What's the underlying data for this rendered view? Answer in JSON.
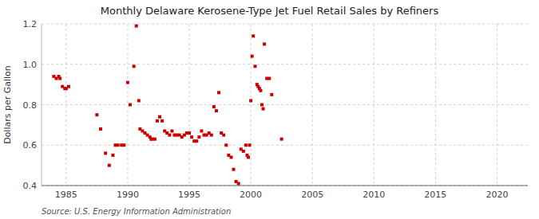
{
  "chart_data": {
    "type": "scatter",
    "title": "Monthly Delaware Kerosene-Type Jet Fuel Retail Sales by Refiners",
    "ylabel": "Dollars per Gallon",
    "source": "Source: U.S. Energy Information Administration",
    "color": "#cc0000",
    "marker": "square",
    "grid": true,
    "xlim": [
      1983.0,
      2022.5
    ],
    "ylim": [
      0.4,
      1.2
    ],
    "xticks": [
      1985,
      1990,
      1995,
      2000,
      2005,
      2010,
      2015,
      2020
    ],
    "yticks": [
      0.4,
      0.6,
      0.8,
      {
        "value": 1.0,
        "label": "1.0"
      },
      1.2
    ],
    "x": [
      1984.0,
      1984.2,
      1984.4,
      1984.5,
      1984.7,
      1984.9,
      1985.0,
      1985.2,
      1987.5,
      1987.8,
      1988.2,
      1988.5,
      1988.8,
      1989.0,
      1989.2,
      1989.5,
      1989.7,
      1990.0,
      1990.2,
      1990.5,
      1990.7,
      1990.9,
      1991.0,
      1991.2,
      1991.4,
      1991.6,
      1991.8,
      1991.9,
      1992.0,
      1992.2,
      1992.4,
      1992.6,
      1992.8,
      1993.0,
      1993.2,
      1993.4,
      1993.6,
      1993.8,
      1994.0,
      1994.2,
      1994.4,
      1994.6,
      1994.8,
      1995.0,
      1995.2,
      1995.4,
      1995.6,
      1995.8,
      1996.0,
      1996.2,
      1996.4,
      1996.6,
      1996.8,
      1997.0,
      1997.2,
      1997.4,
      1997.6,
      1997.8,
      1998.0,
      1998.2,
      1998.4,
      1998.6,
      1998.8,
      1999.0,
      1999.2,
      1999.4,
      1999.6,
      1999.7,
      1999.8,
      1999.9,
      2000.0,
      2000.1,
      2000.2,
      2000.35,
      2000.5,
      2000.6,
      2000.7,
      2000.8,
      2000.9,
      2001.0,
      2001.1,
      2001.3,
      2001.5,
      2001.7,
      2002.5
    ],
    "values": [
      0.94,
      0.93,
      0.94,
      0.93,
      0.89,
      0.88,
      0.88,
      0.89,
      0.75,
      0.68,
      0.56,
      0.5,
      0.55,
      0.6,
      0.6,
      0.6,
      0.6,
      0.91,
      0.8,
      0.99,
      1.19,
      0.82,
      0.68,
      0.67,
      0.66,
      0.65,
      0.64,
      0.63,
      0.63,
      0.63,
      0.72,
      0.74,
      0.72,
      0.67,
      0.66,
      0.65,
      0.67,
      0.65,
      0.65,
      0.65,
      0.64,
      0.65,
      0.66,
      0.66,
      0.64,
      0.62,
      0.62,
      0.64,
      0.67,
      0.65,
      0.65,
      0.66,
      0.65,
      0.79,
      0.77,
      0.86,
      0.66,
      0.65,
      0.6,
      0.55,
      0.54,
      0.48,
      0.42,
      0.41,
      0.58,
      0.57,
      0.6,
      0.55,
      0.54,
      0.6,
      0.82,
      1.04,
      1.14,
      0.99,
      0.9,
      0.89,
      0.88,
      0.87,
      0.8,
      0.78,
      1.1,
      0.93,
      0.93,
      0.85,
      0.63
    ]
  }
}
